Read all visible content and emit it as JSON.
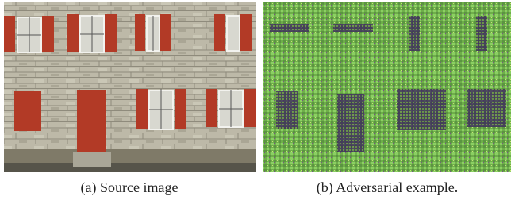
{
  "figure": {
    "panels": [
      {
        "caption": "(a) Source image"
      },
      {
        "caption": "(b) Adversarial example."
      }
    ]
  }
}
